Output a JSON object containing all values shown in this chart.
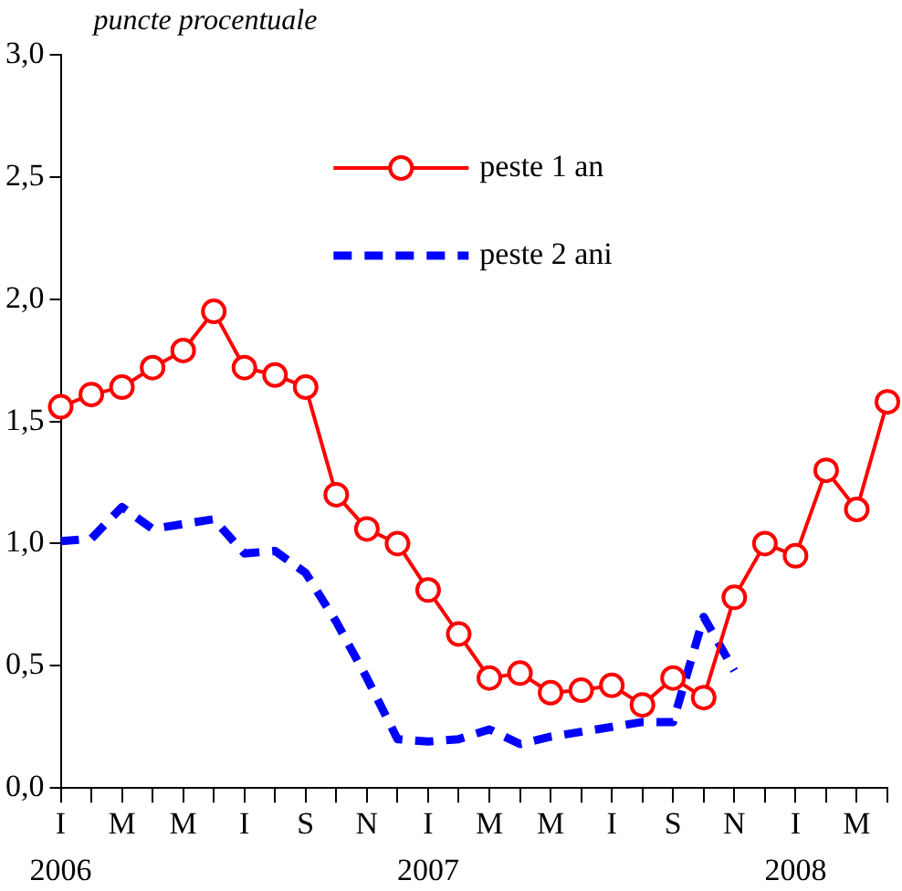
{
  "chart_data": {
    "type": "line",
    "ylabel": "puncte procentuale",
    "categories": [
      "I",
      null,
      "M",
      null,
      "M",
      null,
      "I",
      null,
      "S",
      null,
      "N",
      null,
      "I",
      null,
      "M",
      null,
      "M",
      null,
      "I",
      null,
      "S",
      null,
      "N",
      null,
      "I",
      null,
      "M",
      null
    ],
    "annotations": [
      "2006",
      "2007",
      "2008"
    ],
    "series": [
      {
        "name": "peste 1 an",
        "color": "#ff0000",
        "marker": "circle",
        "line_style": "solid",
        "values": [
          1.56,
          1.61,
          1.64,
          1.72,
          1.79,
          1.95,
          1.72,
          1.69,
          1.64,
          1.2,
          1.06,
          1.0,
          0.81,
          0.63,
          0.45,
          0.47,
          0.39,
          0.4,
          0.42,
          0.34,
          0.45,
          0.37,
          0.78,
          1.0,
          0.95,
          1.3,
          1.14,
          1.58
        ]
      },
      {
        "name": "peste 2 ani",
        "color": "#0000ff",
        "marker": "none",
        "line_style": "dashed",
        "values": [
          1.01,
          1.02,
          1.15,
          1.06,
          1.08,
          1.1,
          0.96,
          0.97,
          0.88,
          0.68,
          0.45,
          0.2,
          0.19,
          0.2,
          0.24,
          0.18,
          0.21,
          0.23,
          0.25,
          0.27,
          0.27,
          0.7,
          0.48,
          null,
          null,
          null,
          null,
          null
        ]
      }
    ],
    "ylim": [
      0,
      3
    ],
    "yticks": [
      {
        "value": 0,
        "label": "0,0"
      },
      {
        "value": 0.5,
        "label": "0,5"
      },
      {
        "value": 1,
        "label": "1,0"
      },
      {
        "value": 1.5,
        "label": "1,5"
      },
      {
        "value": 2,
        "label": "2,0"
      },
      {
        "value": 2.5,
        "label": "2,5"
      },
      {
        "value": 3,
        "label": "3,0"
      }
    ],
    "grid": false,
    "legend": "top"
  }
}
